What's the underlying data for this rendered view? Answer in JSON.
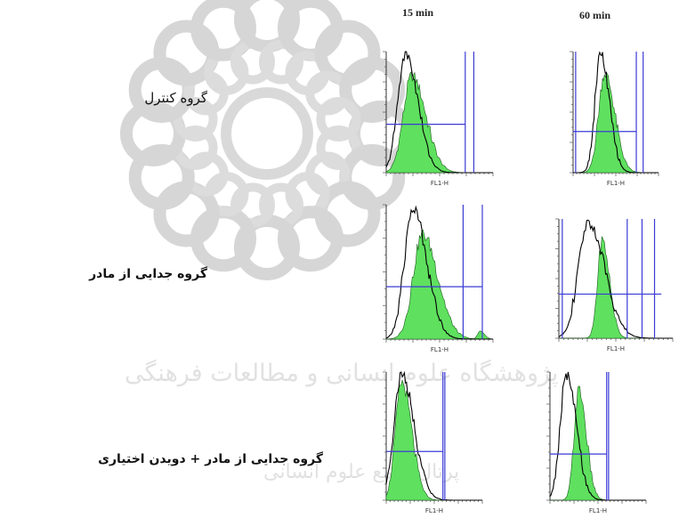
{
  "watermark": {
    "line1": "پژوهشگاه علوم انسانی و مطالعات فرهنگی",
    "line2": "پرتال جامع علوم انسانی"
  },
  "columns": [
    "15 min",
    "60 min"
  ],
  "rows": [
    {
      "label": "گروه کنترل",
      "bold": false
    },
    {
      "label": "گروه جدایی از مادر",
      "bold": true
    },
    {
      "label": "گروه جدایی از مادر + دویدن اختیاری",
      "bold": true
    }
  ],
  "colors": {
    "fill": "#5fe05f",
    "gate": "#3b3bd6",
    "outline": "#000000"
  },
  "chart_data": {
    "type": "area",
    "xlabel": "FL1-H",
    "xscale": "log",
    "x_domain": [
      0,
      1
    ],
    "y_domain": [
      0,
      1
    ],
    "panels": [
      {
        "row": 0,
        "col": 0,
        "filled": {
          "center": 0.24,
          "width": 0.1,
          "height": 0.8
        },
        "outline": {
          "center": 0.18,
          "width": 0.09,
          "height": 0.98
        },
        "hline": 0.4,
        "hline_range": [
          0.0,
          0.74
        ],
        "vlines": [
          0.74,
          0.82
        ]
      },
      {
        "row": 0,
        "col": 1,
        "filled": {
          "center": 0.37,
          "width": 0.09,
          "height": 0.82
        },
        "outline": {
          "center": 0.32,
          "width": 0.08,
          "height": 0.98
        },
        "hline": 0.34,
        "hline_range": [
          0.0,
          0.74
        ],
        "vlines": [
          0.03,
          0.74,
          0.82
        ]
      },
      {
        "row": 1,
        "col": 0,
        "filled": {
          "center": 0.34,
          "width": 0.11,
          "height": 0.78
        },
        "outline": {
          "center": 0.25,
          "width": 0.1,
          "height": 0.97
        },
        "extra": {
          "center": 0.88,
          "width": 0.03,
          "height": 0.06
        },
        "hline": 0.39,
        "hline_range": [
          0.0,
          0.9
        ],
        "vlines": [
          0.72,
          0.9
        ]
      },
      {
        "row": 1,
        "col": 1,
        "filled": {
          "center": 0.38,
          "width": 0.05,
          "height": 0.82
        },
        "outline": {
          "center": 0.26,
          "width": 0.11,
          "height": 0.97
        },
        "hline": 0.37,
        "hline_range": [
          0.0,
          0.9
        ],
        "vlines": [
          0.03,
          0.6,
          0.73,
          0.84
        ]
      },
      {
        "row": 2,
        "col": 0,
        "filled": {
          "center": 0.16,
          "width": 0.08,
          "height": 0.92
        },
        "outline": {
          "center": 0.16,
          "width": 0.1,
          "height": 0.98
        },
        "hline": 0.38,
        "hline_range": [
          0.0,
          0.59
        ],
        "vlines": [
          0.59,
          0.61
        ]
      },
      {
        "row": 2,
        "col": 1,
        "filled": {
          "center": 0.3,
          "width": 0.06,
          "height": 0.86
        },
        "outline": {
          "center": 0.17,
          "width": 0.08,
          "height": 0.98
        },
        "hline": 0.36,
        "hline_range": [
          0.0,
          0.59
        ],
        "vlines": [
          0.59,
          0.61
        ]
      }
    ]
  }
}
